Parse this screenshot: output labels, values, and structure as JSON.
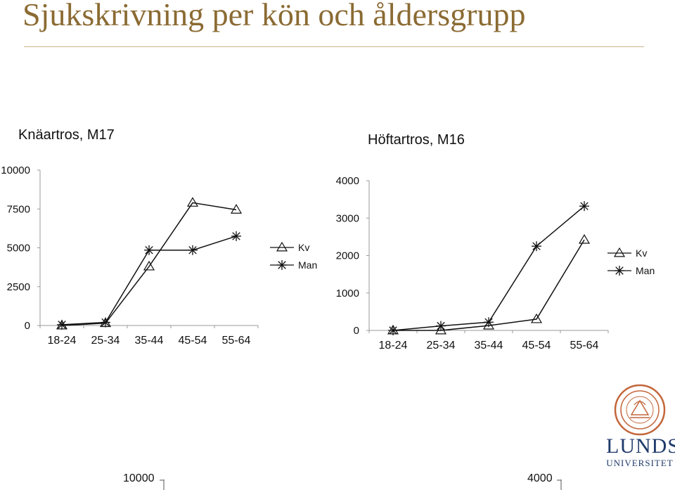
{
  "slide": {
    "title": "Sjukskrivning per kön och åldersgrupp",
    "title_color": "#8b6b33"
  },
  "logo": {
    "name": "LUNDS",
    "subtitle": "UNIVERSITET",
    "color": "#1f3a6b",
    "seal_color": "#c3663b"
  },
  "chart_data": [
    {
      "type": "line",
      "title": "Knäartros, M17",
      "categories": [
        "18-24",
        "25-34",
        "35-44",
        "45-54",
        "55-64"
      ],
      "ylim": [
        0,
        10000
      ],
      "yticks": [
        "0",
        "2500",
        "5000",
        "7500",
        "10000"
      ],
      "legend": "right",
      "grid": false,
      "series": [
        {
          "name": "Kv",
          "marker": "triangle",
          "values": [
            0,
            150,
            3800,
            7900,
            7450
          ]
        },
        {
          "name": "Man",
          "marker": "asterisk",
          "values": [
            50,
            200,
            4850,
            4850,
            5750
          ]
        }
      ]
    },
    {
      "type": "line",
      "title": "Höftartros, M16",
      "categories": [
        "18-24",
        "25-34",
        "35-44",
        "45-54",
        "55-64"
      ],
      "ylim": [
        0,
        4000
      ],
      "yticks": [
        "0",
        "1000",
        "2000",
        "3000",
        "4000"
      ],
      "legend": "right",
      "grid": false,
      "series": [
        {
          "name": "Kv",
          "marker": "triangle",
          "values": [
            0,
            0,
            130,
            300,
            2420
          ]
        },
        {
          "name": "Man",
          "marker": "asterisk",
          "values": [
            0,
            120,
            220,
            2250,
            3320
          ]
        }
      ]
    }
  ],
  "bottom": {
    "left_label": "10000",
    "right_label": "4000"
  }
}
